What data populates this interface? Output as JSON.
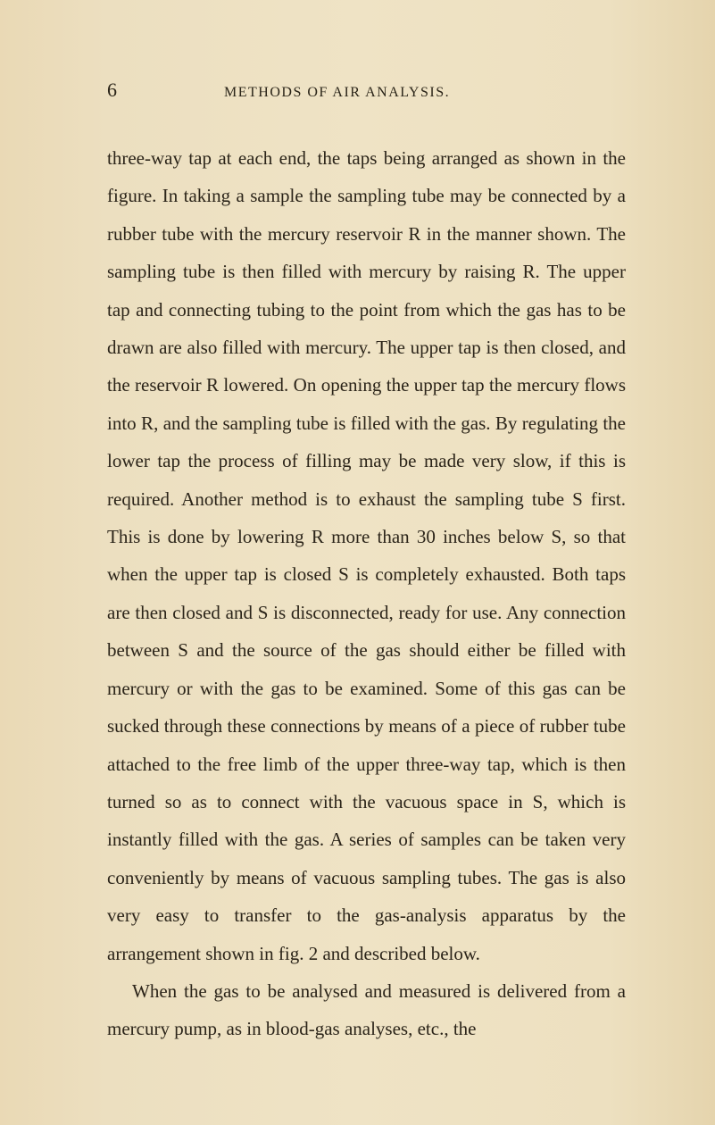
{
  "page": {
    "number": "6",
    "title": "METHODS OF AIR ANALYSIS."
  },
  "body": {
    "para1": "three-way tap at each end, the taps being arranged as shown in the figure. In taking a sample the sampling tube may be connected by a rubber tube with the mercury reservoir R in the manner shown. The sampling tube is then filled with mercury by raising R. The upper tap and connecting tubing to the point from which the gas has to be drawn are also filled with mercury. The upper tap is then closed, and the reservoir R lowered. On opening the upper tap the mercury flows into R, and the sampling tube is filled with the gas. By regulating the lower tap the process of filling may be made very slow, if this is required. Another method is to exhaust the sampling tube S first. This is done by lowering R more than 30 inches below S, so that when the upper tap is closed S is completely exhausted. Both taps are then closed and S is disconnected, ready for use. Any connection between S and the source of the gas should either be filled with mercury or with the gas to be examined. Some of this gas can be sucked through these connections by means of a piece of rubber tube attached to the free limb of the upper three-way tap, which is then turned so as to connect with the vacuous space in S, which is instantly filled with the gas. A series of samples can be taken very conveniently by means of vacuous sampling tubes. The gas is also very easy to transfer to the gas-analysis apparatus by the arrangement shown in fig. 2 and described below.",
    "para2": "When the gas to be analysed and measured is delivered from a mercury pump, as in blood-gas analyses, etc., the"
  }
}
